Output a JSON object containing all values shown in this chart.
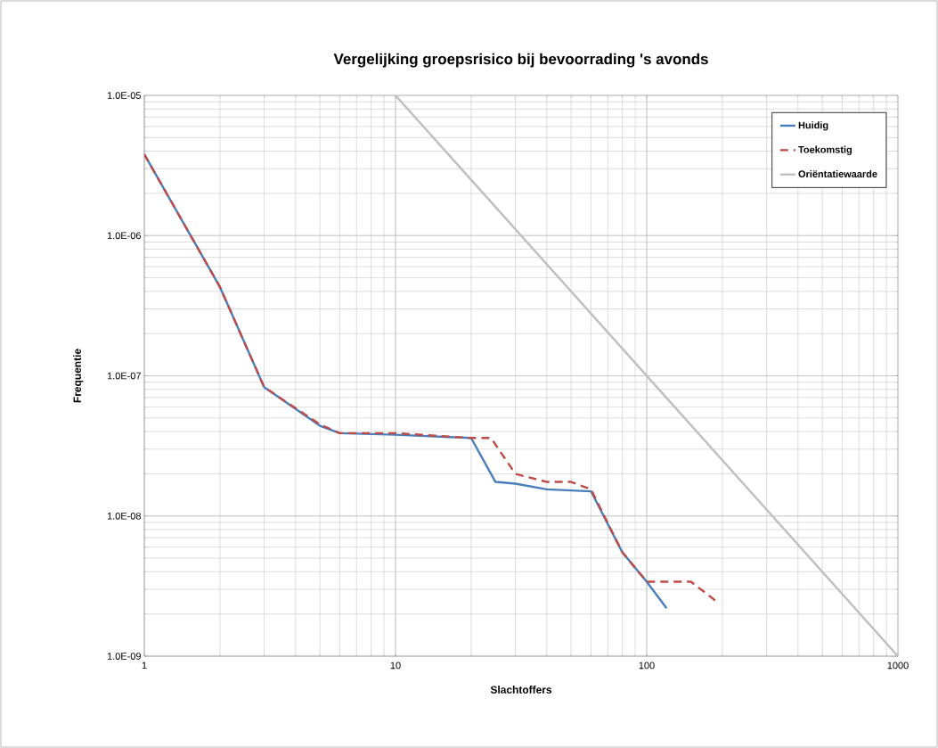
{
  "chart_data": {
    "type": "line",
    "title": "Vergelijking groepsrisico bij bevoorrading 's avonds",
    "xlabel": "Slachtoffers",
    "ylabel": "Frequentie",
    "log": "xy",
    "grid": true,
    "legend": "top right",
    "marker": "none",
    "xlim": [
      1,
      1000
    ],
    "ylim": [
      1e-09,
      1e-05
    ],
    "xticks": [
      1,
      10,
      100,
      1000
    ],
    "yticks": [
      {
        "value": 1e-09,
        "label": "1.0E-09"
      },
      {
        "value": 1e-08,
        "label": "1.0E-08"
      },
      {
        "value": 1e-07,
        "label": "1.0E-07"
      },
      {
        "value": 1e-06,
        "label": "1.0E-06"
      },
      {
        "value": 1e-05,
        "label": "1.0E-05"
      }
    ],
    "series": [
      {
        "name": "Huidig",
        "color": "#4a7ebb",
        "line_style": "solid",
        "x": [
          1,
          2,
          3,
          5,
          6,
          10,
          20,
          25,
          30,
          40,
          60,
          80,
          100,
          120
        ],
        "values": [
          3.8e-06,
          4.3e-07,
          8.3e-08,
          4.4e-08,
          3.9e-08,
          3.8e-08,
          3.6e-08,
          1.75e-08,
          1.7e-08,
          1.55e-08,
          1.5e-08,
          5.5e-09,
          3.4e-09,
          2.2e-09
        ]
      },
      {
        "name": "Toekomstig",
        "color": "#be4b48",
        "line_style": "dashed",
        "x": [
          1,
          2,
          3,
          5,
          6,
          10,
          20,
          24,
          30,
          40,
          50,
          60,
          80,
          100,
          150,
          190
        ],
        "values": [
          3.8e-06,
          4.3e-07,
          8.3e-08,
          4.5e-08,
          3.9e-08,
          3.9e-08,
          3.6e-08,
          3.6e-08,
          2e-08,
          1.75e-08,
          1.75e-08,
          1.55e-08,
          5.5e-09,
          3.4e-09,
          3.4e-09,
          2.45e-09
        ]
      },
      {
        "name": "Oriëntatiewaarde",
        "color": "#bfbfbf",
        "line_style": "solid",
        "x": [
          10,
          1000
        ],
        "values": [
          1e-05,
          1e-09
        ]
      }
    ]
  }
}
